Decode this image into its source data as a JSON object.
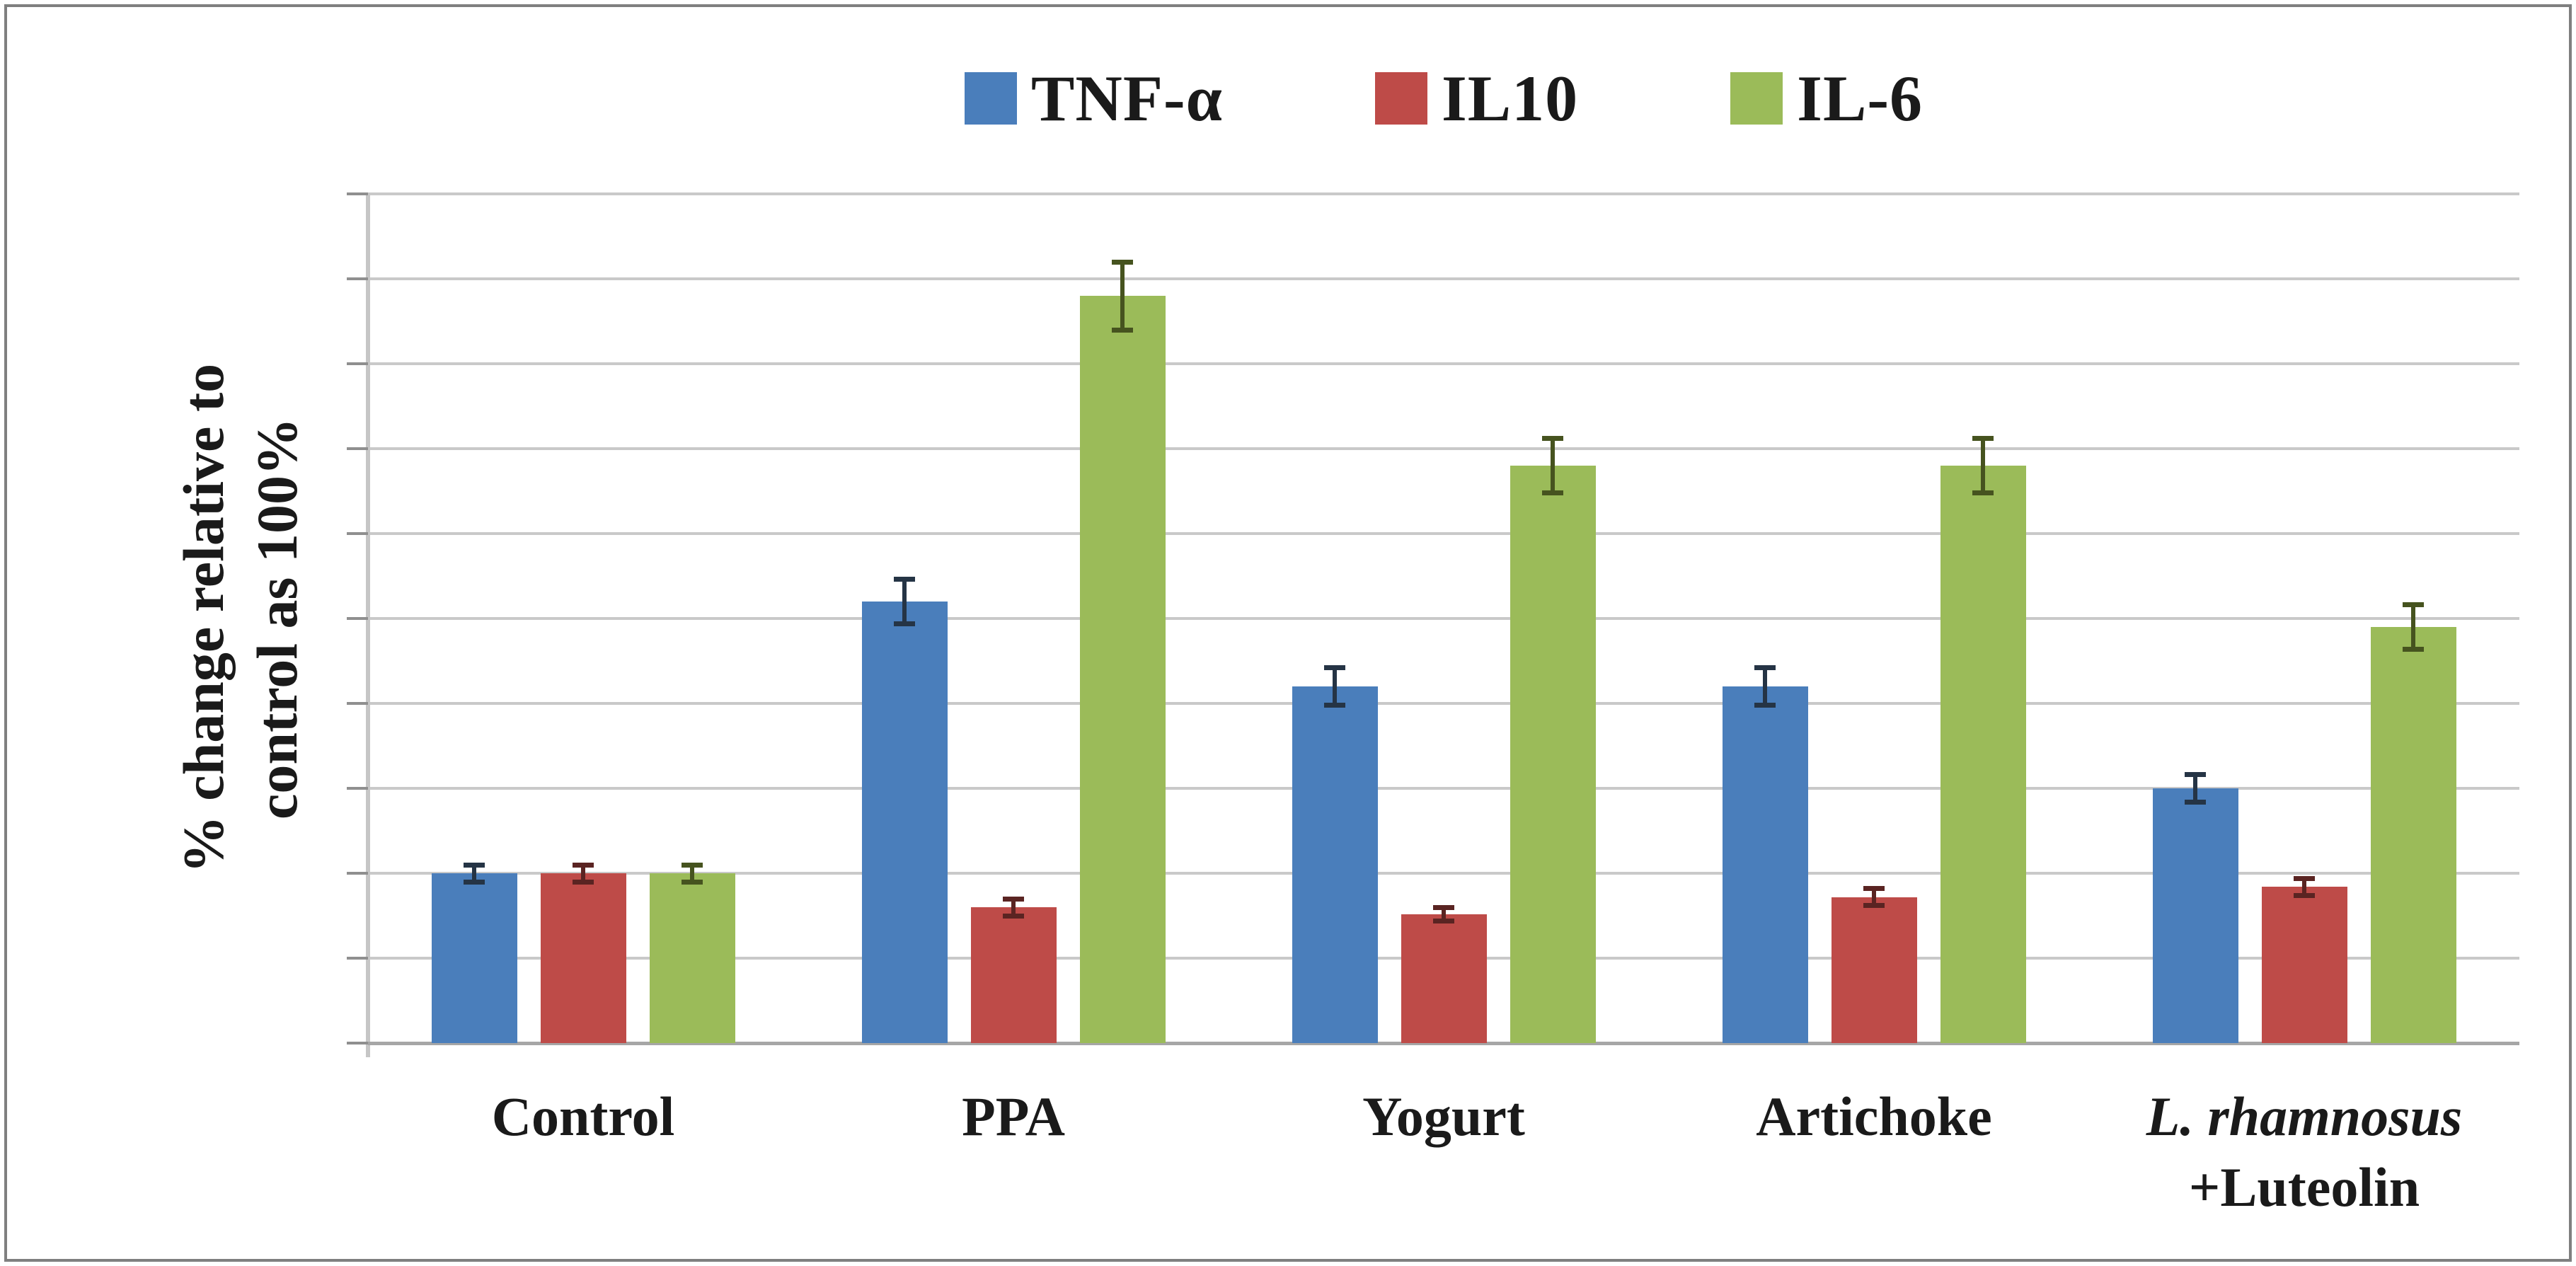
{
  "figure": {
    "background": "#ffffff",
    "frame_color": "#7f7f7f"
  },
  "chart_data": {
    "type": "bar",
    "title": "",
    "y_axis": {
      "label_line1": "% change relative to",
      "label_line2": "control as 100%",
      "min": 0,
      "max": 500,
      "major_unit": 50,
      "tick_labels_visible": false,
      "gridlines_on": true
    },
    "x_axis": {
      "tick_labels_visible": true
    },
    "legend_position": "top",
    "grid_color": "#c9c9c9",
    "axis_line_color": "#a6a6a6",
    "values_unit": "percent of control",
    "categories": [
      {
        "label": "Control"
      },
      {
        "label": "PPA"
      },
      {
        "label": "Yogurt"
      },
      {
        "label": "Artichoke"
      },
      {
        "label": "L. rhamnosus",
        "label_line2": "+Luteolin",
        "line1_italic": true
      }
    ],
    "series": [
      {
        "name": "TNF-α",
        "color": "#4a7ebb",
        "error_color": "#253445",
        "values": [
          100,
          260,
          210,
          210,
          150
        ],
        "errors": [
          5,
          13,
          11,
          11,
          8
        ]
      },
      {
        "name": "IL10",
        "color": "#be4b48",
        "error_color": "#5a2422",
        "values": [
          100,
          80,
          76,
          86,
          92
        ],
        "errors": [
          5,
          5,
          4,
          5,
          5
        ]
      },
      {
        "name": "IL-6",
        "color": "#9bbb59",
        "error_color": "#46531f",
        "values": [
          100,
          440,
          340,
          340,
          245
        ],
        "errors": [
          5,
          20,
          16,
          16,
          13
        ]
      }
    ]
  }
}
